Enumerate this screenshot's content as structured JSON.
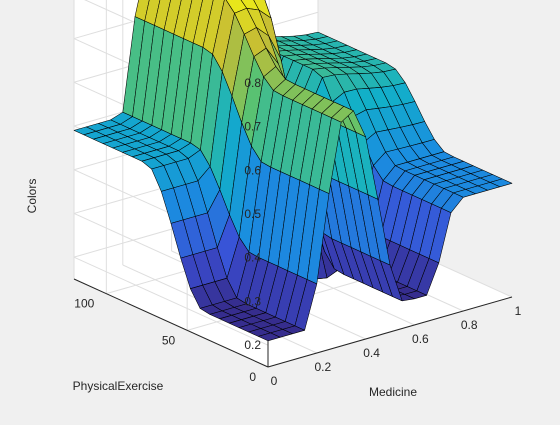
{
  "chart_data": {
    "type": "surface",
    "title": "",
    "xlabel": "Medicine",
    "ylabel": "PhysicalExercise",
    "zlabel": "Colors",
    "xlim": [
      0,
      1
    ],
    "ylim": [
      0,
      120
    ],
    "zlim": [
      0.15,
      0.85
    ],
    "x_ticks": [
      "0",
      "0.2",
      "0.4",
      "0.6",
      "0.8",
      "1"
    ],
    "y_ticks": [
      "0",
      "50",
      "100"
    ],
    "z_ticks": [
      "0.2",
      "0.3",
      "0.4",
      "0.5",
      "0.6",
      "0.7",
      "0.8"
    ],
    "grid": true,
    "colormap": "parula",
    "colormap_stops": [
      "#352a87",
      "#3b4fd6",
      "#1a8de0",
      "#12b0c8",
      "#5bc36f",
      "#c6bd34",
      "#f9fb0e"
    ],
    "x": [
      0,
      0.05,
      0.1,
      0.15,
      0.2,
      0.25,
      0.3,
      0.35,
      0.4,
      0.45,
      0.5,
      0.55,
      0.6,
      0.65,
      0.7,
      0.75,
      0.8,
      0.85,
      0.9,
      0.95,
      1
    ],
    "y": [
      0,
      6,
      12,
      18,
      24,
      30,
      36,
      42,
      48,
      54,
      60,
      66,
      72,
      78,
      84,
      90,
      96,
      102,
      108,
      114,
      120
    ],
    "surface_description": "z values sampled on the x/y grid above"
  }
}
